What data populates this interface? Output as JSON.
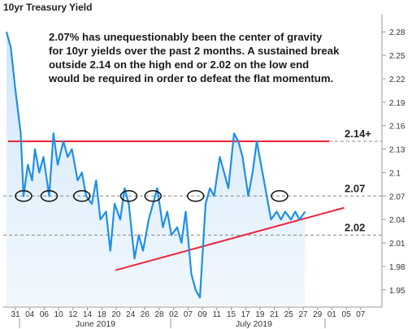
{
  "chart_data": {
    "type": "line",
    "title": "10yr Treasury Yield",
    "annotation_lines": [
      "2.07% has unequestionably been the center of gravity",
      "for 10yr yields over the past 2 months.  A sustained break",
      "outside 2.14 on the high end or 2.02 on the low end",
      "would be required in order to defeat the flat momentum."
    ],
    "y_ticks": [
      "2.28",
      "2.25",
      "2.22",
      "2.19",
      "2.16",
      "2.13",
      "2.1",
      "2.07",
      "2.04",
      "2.01",
      "1.98",
      "1.95"
    ],
    "ylim": [
      1.93,
      2.3
    ],
    "x_ticks": [
      "31",
      "04",
      "06",
      "10",
      "12",
      "14",
      "18",
      "20",
      "24",
      "26",
      "28",
      "02",
      "07",
      "09",
      "11",
      "15",
      "17",
      "19",
      "21",
      "25",
      "27",
      "29",
      "01",
      "05",
      "07"
    ],
    "months": [
      "June 2019",
      "July 2019"
    ],
    "levels": [
      {
        "label": "2.14+",
        "value": 2.14,
        "color": "#e8283c"
      },
      {
        "label": "2.07",
        "value": 2.07,
        "color": "#888888"
      },
      {
        "label": "2.02",
        "value": 2.02,
        "color": "#888888"
      }
    ],
    "trendline": {
      "from": [
        20,
        1.975
      ],
      "to": [
        29,
        2.055
      ],
      "color": "#e8283c"
    },
    "series": [
      {
        "color": "#1f8fe8",
        "x": [
          0,
          0.3,
          0.6,
          1,
          1.2,
          1.5,
          1.8,
          2,
          2.3,
          2.6,
          3,
          3.3,
          3.6,
          4,
          4.3,
          4.6,
          5,
          5.3,
          5.6,
          6,
          6.3,
          6.6,
          7,
          7.3,
          7.6,
          8,
          8.3,
          8.6,
          9,
          9.3,
          9.6,
          10,
          10.3,
          10.6,
          11,
          11.3,
          11.6,
          12,
          12.3,
          12.6,
          13,
          13.3,
          13.6,
          14,
          14.3,
          14.6,
          15,
          15.3,
          15.6,
          16,
          16.3,
          16.6,
          17,
          17.3,
          17.6,
          18,
          18.3,
          18.6,
          19,
          19.3,
          19.6,
          20,
          20.3,
          20.6,
          21
        ],
        "y": [
          2.28,
          2.26,
          2.21,
          2.15,
          2.07,
          2.11,
          2.09,
          2.13,
          2.1,
          2.12,
          2.07,
          2.15,
          2.11,
          2.14,
          2.12,
          2.13,
          2.09,
          2.1,
          2.07,
          2.06,
          2.09,
          2.04,
          2.05,
          2.0,
          2.06,
          2.04,
          2.08,
          2.06,
          1.99,
          2.02,
          2.0,
          2.04,
          2.06,
          2.08,
          2.03,
          2.05,
          2.02,
          2.03,
          2.01,
          2.05,
          1.97,
          1.95,
          1.94,
          2.06,
          2.08,
          2.07,
          2.12,
          2.1,
          2.08,
          2.15,
          2.14,
          2.12,
          2.07,
          2.1,
          2.14,
          2.1,
          2.07,
          2.04,
          2.05,
          2.04,
          2.05,
          2.04,
          2.05,
          2.04,
          2.05
        ]
      }
    ],
    "ellipses": [
      1.2,
      3,
      5.3,
      8.6,
      10.3,
      13.3,
      19.2
    ],
    "grid": false,
    "legend": "none"
  }
}
